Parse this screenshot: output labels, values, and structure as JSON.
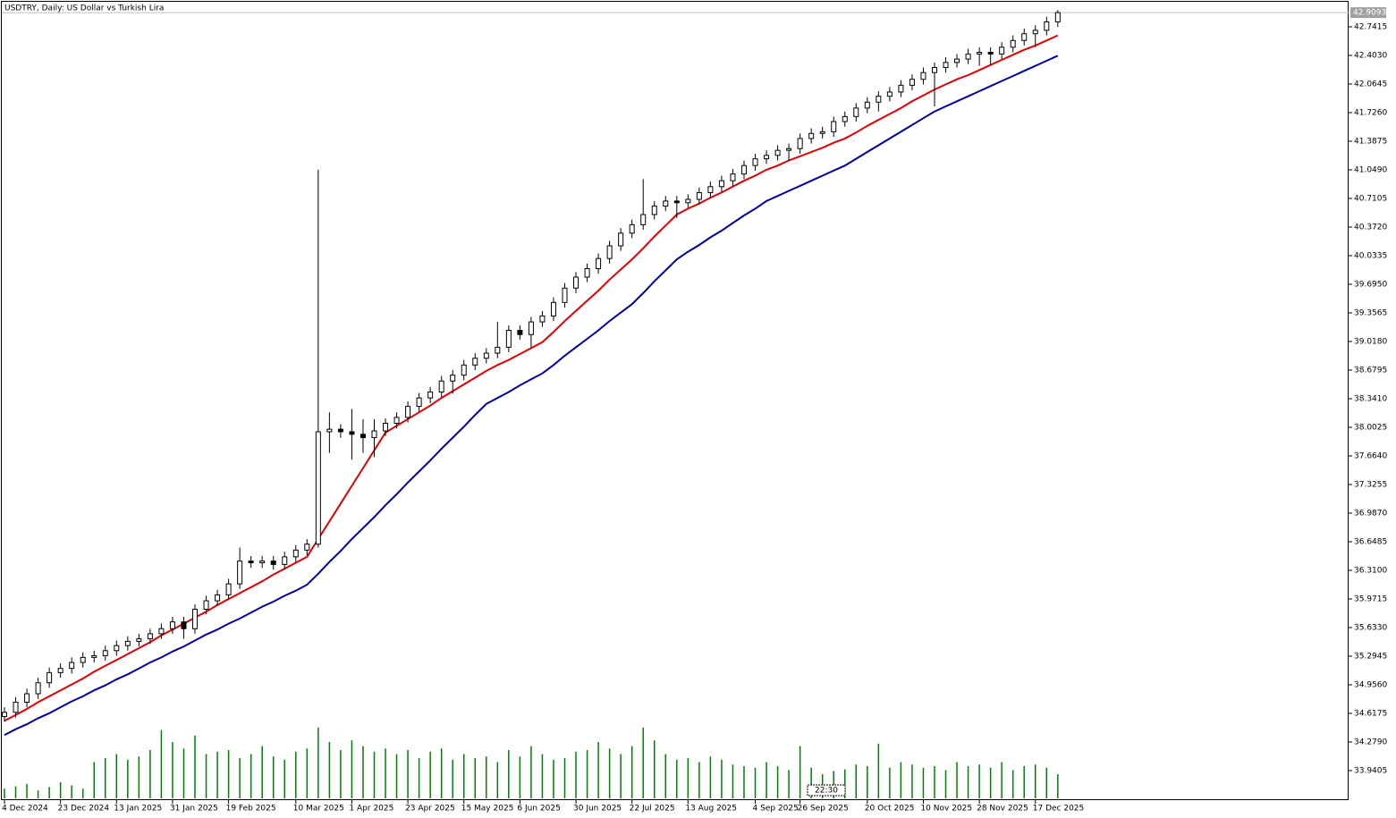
{
  "chart_data": {
    "type": "candlestick",
    "title": "USDTRY, Daily:  US Dollar vs Turkish Lira",
    "categories": [
      "4 Dec 2024",
      null,
      null,
      null,
      null,
      "23 Dec 2024",
      null,
      null,
      null,
      null,
      "13 Jan 2025",
      null,
      null,
      null,
      null,
      "31 Jan 2025",
      null,
      null,
      null,
      null,
      "19 Feb 2025",
      null,
      null,
      null,
      null,
      null,
      "10 Mar 2025",
      null,
      null,
      null,
      null,
      "1 Apr 2025",
      null,
      null,
      null,
      null,
      "23 Apr 2025",
      null,
      null,
      null,
      null,
      "15 May 2025",
      null,
      null,
      null,
      null,
      "6 Jun 2025",
      null,
      null,
      null,
      null,
      "30 Jun 2025",
      null,
      null,
      null,
      null,
      "22 Jul 2025",
      null,
      null,
      null,
      null,
      "13 Aug 2025",
      null,
      null,
      null,
      null,
      null,
      "4 Sep 2025",
      null,
      null,
      null,
      "26 Sep 2025",
      null,
      null,
      null,
      null,
      null,
      "20 Oct 2025",
      null,
      null,
      null,
      null,
      "10 Nov 2025",
      null,
      null,
      null,
      null,
      "28 Nov 2025",
      null,
      null,
      null,
      null,
      "17 Dec 2025",
      null,
      null
    ],
    "open": [
      34.58,
      34.63,
      34.75,
      34.85,
      34.98,
      35.1,
      35.15,
      35.22,
      35.28,
      35.3,
      35.36,
      35.42,
      35.47,
      35.5,
      35.56,
      35.62,
      35.7,
      35.62,
      35.85,
      35.95,
      36.02,
      36.15,
      36.42,
      36.4,
      36.42,
      36.38,
      36.47,
      36.55,
      36.62,
      37.95,
      37.98,
      37.95,
      37.92,
      37.88,
      37.96,
      38.05,
      38.12,
      38.25,
      38.35,
      38.42,
      38.55,
      38.62,
      38.74,
      38.82,
      38.88,
      38.95,
      39.15,
      39.1,
      39.25,
      39.32,
      39.48,
      39.65,
      39.78,
      39.88,
      40.0,
      40.15,
      40.3,
      40.4,
      40.52,
      40.62,
      40.68,
      40.66,
      40.7,
      40.78,
      40.85,
      40.92,
      41.0,
      41.1,
      41.18,
      41.22,
      41.28,
      41.3,
      41.42,
      41.48,
      41.5,
      41.62,
      41.68,
      41.78,
      41.85,
      41.92,
      41.97,
      42.05,
      42.12,
      42.2,
      42.26,
      42.32,
      42.36,
      42.42,
      42.44,
      42.42,
      42.5,
      42.58,
      42.66,
      42.7,
      42.8
    ],
    "high": [
      34.69,
      34.81,
      34.91,
      35.04,
      35.16,
      35.21,
      35.28,
      35.34,
      35.36,
      35.42,
      35.48,
      35.53,
      35.56,
      35.62,
      35.68,
      35.76,
      35.76,
      35.91,
      36.01,
      36.08,
      36.21,
      36.58,
      36.48,
      36.48,
      36.48,
      36.53,
      36.61,
      36.68,
      41.05,
      38.18,
      38.04,
      38.22,
      38.1,
      38.1,
      38.11,
      38.18,
      38.31,
      38.41,
      38.48,
      38.61,
      38.68,
      38.8,
      38.88,
      38.94,
      39.25,
      39.21,
      39.21,
      39.31,
      39.38,
      39.54,
      39.71,
      39.84,
      39.94,
      40.06,
      40.21,
      40.36,
      40.46,
      40.94,
      40.68,
      40.74,
      40.74,
      40.76,
      40.84,
      40.91,
      40.98,
      41.06,
      41.16,
      41.24,
      41.28,
      41.34,
      41.36,
      41.48,
      41.54,
      41.56,
      41.68,
      41.74,
      41.84,
      41.91,
      41.98,
      42.03,
      42.11,
      42.18,
      42.26,
      42.32,
      42.38,
      42.42,
      42.48,
      42.5,
      42.5,
      42.56,
      42.64,
      42.72,
      42.76,
      42.86,
      42.94
    ],
    "low": [
      34.52,
      34.57,
      34.69,
      34.79,
      34.92,
      35.04,
      35.09,
      35.16,
      35.22,
      35.24,
      35.3,
      35.36,
      35.41,
      35.44,
      35.5,
      35.56,
      35.5,
      35.56,
      35.79,
      35.89,
      35.96,
      36.09,
      36.34,
      36.34,
      36.32,
      36.32,
      36.41,
      36.49,
      36.58,
      37.7,
      37.88,
      37.62,
      37.7,
      37.65,
      37.9,
      37.99,
      38.06,
      38.19,
      38.29,
      38.36,
      38.4,
      38.56,
      38.68,
      38.76,
      38.82,
      38.89,
      39.04,
      38.95,
      39.19,
      39.26,
      39.42,
      39.59,
      39.72,
      39.82,
      39.94,
      40.09,
      40.24,
      40.34,
      40.46,
      40.56,
      40.48,
      40.6,
      40.64,
      40.72,
      40.79,
      40.86,
      40.94,
      41.04,
      41.12,
      41.16,
      41.15,
      41.24,
      41.36,
      41.42,
      41.44,
      41.56,
      41.62,
      41.72,
      41.74,
      41.86,
      41.91,
      41.99,
      42.06,
      41.8,
      42.2,
      42.26,
      42.3,
      42.28,
      42.3,
      42.36,
      42.44,
      42.52,
      42.5,
      42.64,
      42.74
    ],
    "close": [
      34.63,
      34.75,
      34.85,
      34.98,
      35.1,
      35.15,
      35.22,
      35.28,
      35.3,
      35.36,
      35.42,
      35.47,
      35.5,
      35.56,
      35.62,
      35.7,
      35.62,
      35.85,
      35.95,
      36.02,
      36.15,
      36.42,
      36.4,
      36.42,
      36.38,
      36.47,
      36.55,
      36.62,
      37.95,
      37.98,
      37.95,
      37.92,
      37.88,
      37.96,
      38.05,
      38.12,
      38.25,
      38.35,
      38.42,
      38.55,
      38.62,
      38.74,
      38.82,
      38.88,
      38.95,
      39.15,
      39.1,
      39.25,
      39.32,
      39.48,
      39.65,
      39.78,
      39.88,
      40.0,
      40.15,
      40.3,
      40.4,
      40.52,
      40.62,
      40.68,
      40.66,
      40.7,
      40.78,
      40.85,
      40.92,
      41.0,
      41.1,
      41.18,
      41.22,
      41.28,
      41.3,
      41.42,
      41.48,
      41.5,
      41.62,
      41.68,
      41.78,
      41.85,
      41.92,
      41.97,
      42.05,
      42.12,
      42.2,
      42.26,
      42.32,
      42.36,
      42.42,
      42.44,
      42.42,
      42.5,
      42.58,
      42.66,
      42.7,
      42.8,
      42.91
    ],
    "bull_color": "#ffffff",
    "bear_color": "#000000",
    "moving_averages": [
      {
        "color": "#e00000",
        "values": [
          34.53,
          34.6,
          34.67,
          34.75,
          34.82,
          34.89,
          34.96,
          35.03,
          35.11,
          35.18,
          35.25,
          35.32,
          35.39,
          35.46,
          35.54,
          35.61,
          35.68,
          35.75,
          35.82,
          35.9,
          35.97,
          36.04,
          36.11,
          36.18,
          36.26,
          36.33,
          36.4,
          36.47,
          36.68,
          36.89,
          37.1,
          37.31,
          37.52,
          37.73,
          37.94,
          38.02,
          38.1,
          38.18,
          38.26,
          38.35,
          38.43,
          38.51,
          38.59,
          38.67,
          38.74,
          38.8,
          38.87,
          38.94,
          39.01,
          39.13,
          39.26,
          39.38,
          39.5,
          39.62,
          39.75,
          39.87,
          39.99,
          40.12,
          40.26,
          40.39,
          40.52,
          40.59,
          40.65,
          40.72,
          40.78,
          40.85,
          40.92,
          40.98,
          41.05,
          41.1,
          41.16,
          41.21,
          41.26,
          41.31,
          41.37,
          41.42,
          41.49,
          41.57,
          41.64,
          41.71,
          41.78,
          41.86,
          41.93,
          42.0,
          42.06,
          42.12,
          42.17,
          42.23,
          42.29,
          42.35,
          42.41,
          42.47,
          42.52,
          42.58,
          42.64
        ]
      },
      {
        "color": "#0000a0",
        "values": [
          34.36,
          34.43,
          34.49,
          34.56,
          34.62,
          34.69,
          34.76,
          34.82,
          34.89,
          34.95,
          35.02,
          35.08,
          35.15,
          35.22,
          35.28,
          35.35,
          35.41,
          35.48,
          35.55,
          35.61,
          35.68,
          35.74,
          35.81,
          35.88,
          35.94,
          36.01,
          36.07,
          36.14,
          36.27,
          36.41,
          36.54,
          36.68,
          36.81,
          36.94,
          37.08,
          37.21,
          37.35,
          37.48,
          37.61,
          37.75,
          37.88,
          38.01,
          38.15,
          38.28,
          38.35,
          38.42,
          38.5,
          38.57,
          38.64,
          38.74,
          38.85,
          38.95,
          39.05,
          39.15,
          39.26,
          39.36,
          39.46,
          39.59,
          39.73,
          39.86,
          39.99,
          40.08,
          40.16,
          40.25,
          40.33,
          40.42,
          40.51,
          40.59,
          40.68,
          40.74,
          40.8,
          40.86,
          40.92,
          40.98,
          41.04,
          41.1,
          41.18,
          41.26,
          41.34,
          41.42,
          41.5,
          41.58,
          41.66,
          41.74,
          41.8,
          41.86,
          41.92,
          41.98,
          42.04,
          42.1,
          42.16,
          42.22,
          42.28,
          42.34,
          42.4
        ]
      }
    ],
    "volume": [
      12,
      15,
      18,
      10,
      14,
      20,
      16,
      12,
      45,
      50,
      55,
      48,
      52,
      60,
      85,
      70,
      62,
      78,
      55,
      58,
      60,
      50,
      55,
      65,
      52,
      48,
      58,
      62,
      88,
      70,
      60,
      72,
      65,
      58,
      62,
      55,
      60,
      50,
      58,
      62,
      48,
      55,
      50,
      52,
      45,
      60,
      52,
      65,
      55,
      48,
      50,
      58,
      60,
      70,
      62,
      55,
      65,
      88,
      72,
      55,
      48,
      50,
      45,
      52,
      48,
      42,
      40,
      38,
      45,
      40,
      35,
      65,
      38,
      30,
      34,
      36,
      42,
      40,
      68,
      38,
      45,
      42,
      38,
      40,
      35,
      45,
      40,
      42,
      38,
      45,
      35,
      40,
      42,
      38,
      30
    ],
    "volume_color": "#008000",
    "vlim": [
      0,
      100
    ],
    "ylim": [
      33.5914,
      43.0588
    ],
    "yticks": [
      42.7415,
      {
        "value": 42.403,
        "label": "42.4030"
      },
      42.0645,
      {
        "value": 41.726,
        "label": "41.7260"
      },
      41.3875,
      {
        "value": 41.049,
        "label": "41.0490"
      },
      40.7105,
      {
        "value": 40.372,
        "label": "40.3720"
      },
      40.0335,
      {
        "value": 39.695,
        "label": "39.6950"
      },
      39.3565,
      {
        "value": 39.018,
        "label": "39.0180"
      },
      38.6795,
      {
        "value": 38.341,
        "label": "38.3410"
      },
      38.0025,
      {
        "value": 37.664,
        "label": "37.6640"
      },
      37.3255,
      {
        "value": 36.987,
        "label": "36.9870"
      },
      36.6485,
      {
        "value": 36.31,
        "label": "36.3100"
      },
      35.9715,
      {
        "value": 35.633,
        "label": "35.6330"
      },
      35.2945,
      {
        "value": 34.956,
        "label": "34.9560"
      },
      34.6175,
      {
        "value": 34.279,
        "label": "34.2790"
      },
      33.9405
    ],
    "last_price": 42.9093,
    "time_label": "22:30"
  }
}
